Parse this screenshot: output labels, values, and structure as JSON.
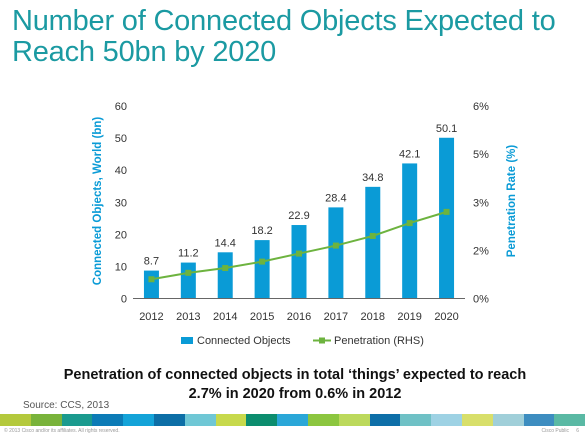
{
  "slide": {
    "title": "Number of Connected Objects Expected to Reach 50bn by 2020",
    "subtitle": "Penetration of connected objects in total ‘things’ expected to reach 2.7% in 2020 from 0.6% in 2012",
    "source": "Source: CCS, 2013",
    "footer_left": "© 2013 Cisco and/or its affiliates. All rights reserved.",
    "footer_right": "Cisco Public",
    "page_number": "6",
    "footer_colors": [
      "#b4c93c",
      "#79b33b",
      "#1a9a8e",
      "#0c7bb6",
      "#14a3d8",
      "#0d6ea6",
      "#6fc7d5",
      "#c7d94c",
      "#0c8d6e",
      "#2aa7d8",
      "#8cc63f",
      "#bcd95c",
      "#0e6fa8",
      "#6fc1c6",
      "#9ed2e4",
      "#d8df6a",
      "#a0cfd9",
      "#3d8dc0",
      "#5ab9a4"
    ]
  },
  "chart_data": {
    "type": "bar",
    "categories": [
      "2012",
      "2013",
      "2014",
      "2015",
      "2016",
      "2017",
      "2018",
      "2019",
      "2020"
    ],
    "series": [
      {
        "name": "Connected Objects",
        "type": "bar",
        "axis": "left",
        "color": "#0a9bd6",
        "values": [
          8.7,
          11.2,
          14.4,
          18.2,
          22.9,
          28.4,
          34.8,
          42.1,
          50.1
        ],
        "labels": [
          "8.7",
          "11.2",
          "14.4",
          "18.2",
          "22.9",
          "28.4",
          "34.8",
          "42.1",
          "50.1"
        ]
      },
      {
        "name": "Penetration (RHS)",
        "type": "line",
        "axis": "right",
        "color": "#6db33f",
        "values": [
          0.6,
          0.8,
          0.95,
          1.15,
          1.4,
          1.65,
          1.95,
          2.35,
          2.7
        ]
      }
    ],
    "ylabel": "Connected Objects, World (bn)",
    "ylabel_right": "Penetration Rate (%)",
    "ylim": [
      0,
      60
    ],
    "yticks": [
      "0",
      "10",
      "20",
      "30",
      "40",
      "50",
      "60"
    ],
    "ylim_right": [
      0,
      6
    ],
    "yticks_right": [
      "0%",
      "2%",
      "3%",
      "5%",
      "6%"
    ],
    "yticks_right_values": [
      0,
      1.5,
      3,
      4.5,
      6
    ],
    "legend_position": "bottom",
    "grid": false
  }
}
